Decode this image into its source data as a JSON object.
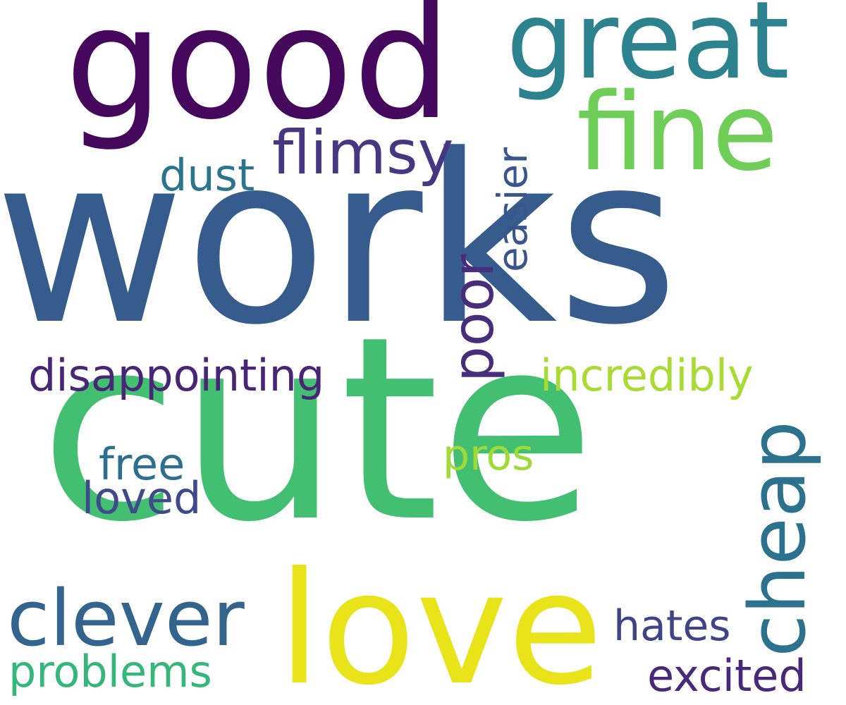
{
  "words": {
    "works": {
      "text": "works",
      "color": "#365c8d"
    },
    "cute": {
      "text": "cute",
      "color": "#43bf71"
    },
    "good": {
      "text": "good",
      "color": "#46085c"
    },
    "great": {
      "text": "great",
      "color": "#2d8290"
    },
    "fine": {
      "text": "fine",
      "color": "#6ece58"
    },
    "love": {
      "text": "love",
      "color": "#e8e419"
    },
    "clever": {
      "text": "clever",
      "color": "#32648e"
    },
    "cheap": {
      "text": "cheap",
      "color": "#2c718e"
    },
    "flimsy": {
      "text": "flimsy",
      "color": "#453781"
    },
    "poor": {
      "text": "poor",
      "color": "#472d7b"
    },
    "easier": {
      "text": "easier",
      "color": "#3a548c"
    },
    "dust": {
      "text": "dust",
      "color": "#2b748e"
    },
    "disappointing": {
      "text": "disappointing",
      "color": "#482576"
    },
    "incredibly": {
      "text": "incredibly",
      "color": "#a8db34"
    },
    "pros": {
      "text": "pros",
      "color": "#a0da39"
    },
    "free": {
      "text": "free",
      "color": "#2e6e8e"
    },
    "loved": {
      "text": "loved",
      "color": "#3e4a89"
    },
    "hates": {
      "text": "hates",
      "color": "#404387"
    },
    "problems": {
      "text": "problems",
      "color": "#35b779"
    },
    "excited": {
      "text": "excited",
      "color": "#482878"
    }
  }
}
